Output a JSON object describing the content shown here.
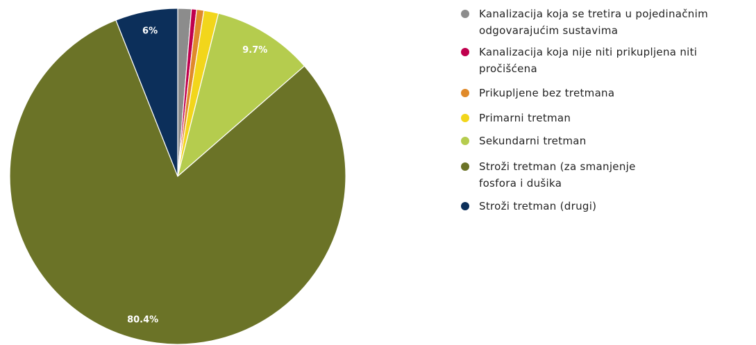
{
  "chart_data": {
    "type": "pie",
    "categories": [
      "Kanalizacija koja se tretira u pojedinačnim odgovarajućim sustavima",
      "Kanalizacija koja nije niti prikupljena niti pročišćena",
      "Prikupljene bez tretmana",
      "Primarni tretman",
      "Sekundarni tretman",
      "Stroži tretman (za smanjenje fosfora i dušika",
      "Stroži tretman (drugi)"
    ],
    "values": [
      1.3,
      0.5,
      0.7,
      1.4,
      9.7,
      80.4,
      6
    ],
    "value_labels": [
      null,
      null,
      null,
      null,
      "9.7%",
      "80.4%",
      "6%"
    ],
    "colors": [
      "#8c8c8c",
      "#c0004e",
      "#e08a2a",
      "#f2d61b",
      "#b5cc4e",
      "#6b7327",
      "#0c2f5a"
    ],
    "legend": "right"
  }
}
